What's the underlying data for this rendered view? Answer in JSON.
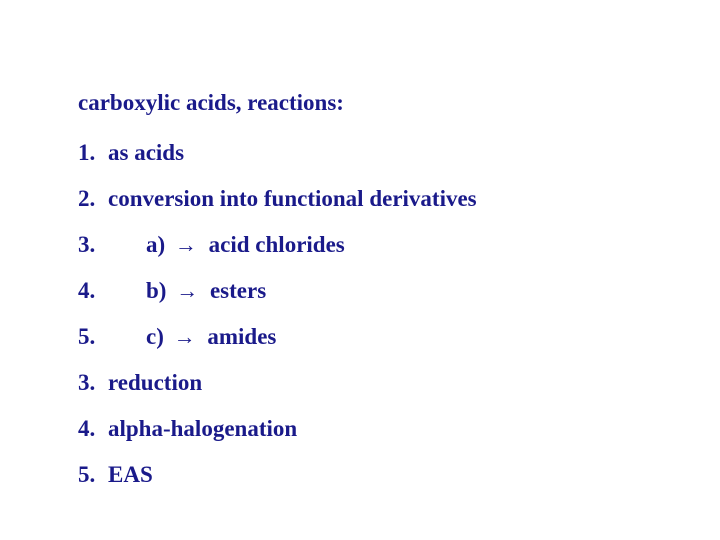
{
  "title": "carboxylic acids, reactions:",
  "items": [
    {
      "num": "1.",
      "text": "as acids",
      "indent": false,
      "hasArrow": false
    },
    {
      "num": "2.",
      "text": "conversion into functional derivatives",
      "indent": false,
      "hasArrow": false
    },
    {
      "num": "3.",
      "letter": "a)",
      "arrow": "→",
      "text": "acid chlorides",
      "indent": true,
      "hasArrow": true
    },
    {
      "num": "4.",
      "letter": "b)",
      "arrow": "→",
      "text": "esters",
      "indent": true,
      "hasArrow": true
    },
    {
      "num": "5.",
      "letter": "c)",
      "arrow": "→",
      "text": "amides",
      "indent": true,
      "hasArrow": true
    },
    {
      "num": "3.",
      "text": "reduction",
      "indent": false,
      "hasArrow": false
    },
    {
      "num": "4.",
      "text": "alpha-halogenation",
      "indent": false,
      "hasArrow": false
    },
    {
      "num": "5.",
      "text": "EAS",
      "indent": false,
      "hasArrow": false
    }
  ],
  "colors": {
    "text": "#1a1a8a",
    "background": "#ffffff"
  },
  "typography": {
    "fontFamily": "Times New Roman",
    "fontSize": 23,
    "fontWeight": "bold"
  }
}
